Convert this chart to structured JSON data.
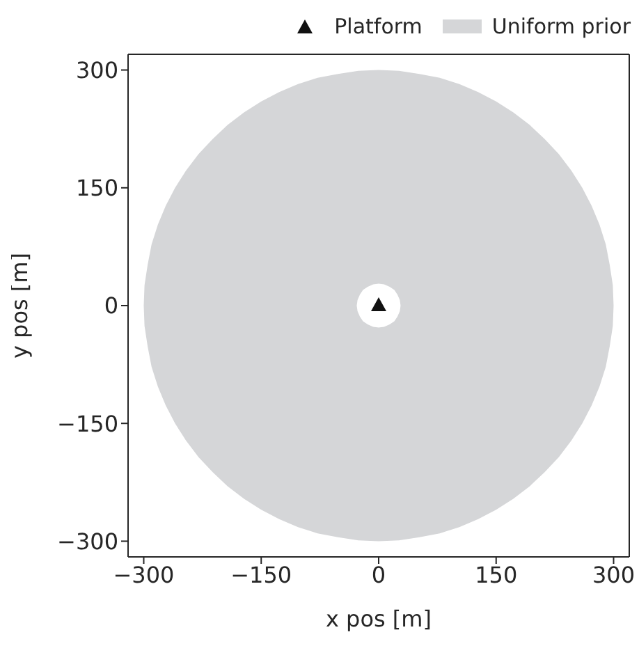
{
  "chart_data": {
    "type": "scatter",
    "xlabel": "x pos [m]",
    "ylabel": "y pos [m]",
    "xlim": [
      -320,
      320
    ],
    "ylim": [
      -320,
      320
    ],
    "xticks": [
      {
        "value": -300,
        "label": "−300"
      },
      {
        "value": -150,
        "label": "−150"
      },
      0,
      150,
      300
    ],
    "yticks": [
      {
        "value": -300,
        "label": "−300"
      },
      {
        "value": -150,
        "label": "−150"
      },
      0,
      150,
      300
    ],
    "legend": "top right",
    "series": [
      {
        "name": "Platform",
        "marker": "triangle",
        "color": "#111111",
        "x": [
          0
        ],
        "values": [
          0
        ]
      },
      {
        "name": "Uniform prior",
        "type": "area",
        "color": "#d5d6d8",
        "x": [
          300,
          299,
          295,
          290,
          282,
          272,
          260,
          246,
          230,
          212,
          193,
          172,
          150,
          127,
          103,
          78,
          52,
          26,
          0,
          -26,
          -52,
          -78,
          -103,
          -127,
          -150,
          -172,
          -193,
          -212,
          -230,
          -246,
          -260,
          -272,
          -282,
          -290,
          -295,
          -299,
          -300,
          -299,
          -295,
          -290,
          -282,
          -272,
          -260,
          -246,
          -230,
          -212,
          -193,
          -172,
          -150,
          -127,
          -103,
          -78,
          -52,
          -26,
          0,
          26,
          52,
          78,
          103,
          127,
          150,
          172,
          193,
          212,
          230,
          246,
          260,
          272,
          282,
          290,
          295,
          299,
          300,
          28,
          27,
          24,
          20,
          14,
          7,
          0,
          -7,
          -14,
          -20,
          -24,
          -27,
          -28,
          -27,
          -24,
          -20,
          -14,
          -7,
          0,
          7,
          14,
          20,
          24,
          27,
          28
        ],
        "values": [
          0,
          26,
          52,
          78,
          103,
          127,
          150,
          172,
          193,
          212,
          230,
          246,
          260,
          272,
          282,
          290,
          295,
          299,
          300,
          299,
          295,
          290,
          282,
          272,
          260,
          246,
          230,
          212,
          193,
          172,
          150,
          127,
          103,
          78,
          52,
          26,
          0,
          -26,
          -52,
          -78,
          -103,
          -127,
          -150,
          -172,
          -193,
          -212,
          -230,
          -246,
          -260,
          -272,
          -282,
          -290,
          -295,
          -299,
          -300,
          -299,
          -295,
          -290,
          -282,
          -272,
          -260,
          -246,
          -230,
          -212,
          -193,
          -172,
          -150,
          -127,
          -103,
          -78,
          -52,
          -26,
          0,
          0,
          -7,
          -14,
          -20,
          -24,
          -27,
          -28,
          -27,
          -24,
          -20,
          -14,
          -7,
          0,
          7,
          14,
          20,
          24,
          27,
          28,
          27,
          24,
          20,
          14,
          7,
          0
        ]
      }
    ]
  }
}
